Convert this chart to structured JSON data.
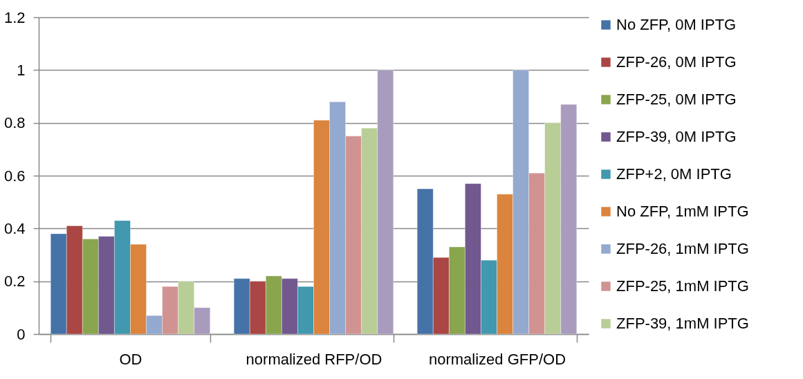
{
  "chart_data": {
    "type": "bar",
    "categories": [
      "OD",
      "normalized RFP/OD",
      "normalized GFP/OD"
    ],
    "series": [
      {
        "name": "No ZFP, 0M IPTG",
        "color": "#4572a7",
        "values": [
          0.38,
          0.21,
          0.55
        ]
      },
      {
        "name": "ZFP-26, 0M IPTG",
        "color": "#aa4643",
        "values": [
          0.41,
          0.2,
          0.29
        ]
      },
      {
        "name": "ZFP-25, 0M IPTG",
        "color": "#89a54e",
        "values": [
          0.36,
          0.22,
          0.33
        ]
      },
      {
        "name": "ZFP-39, 0M IPTG",
        "color": "#71588f",
        "values": [
          0.37,
          0.21,
          0.57
        ]
      },
      {
        "name": "ZFP+2, 0M IPTG",
        "color": "#4198af",
        "values": [
          0.43,
          0.18,
          0.28
        ]
      },
      {
        "name": "No ZFP, 1mM IPTG",
        "color": "#db843d",
        "values": [
          0.34,
          0.81,
          0.53
        ]
      },
      {
        "name": "ZFP-26, 1mM IPTG",
        "color": "#93a9cf",
        "values": [
          0.07,
          0.88,
          1.0
        ]
      },
      {
        "name": "ZFP-25, 1mM IPTG",
        "color": "#d19392",
        "values": [
          0.18,
          0.75,
          0.61
        ]
      },
      {
        "name": "ZFP-39, 1mM IPTG",
        "color": "#b9cd96",
        "values": [
          0.2,
          0.78,
          0.8
        ]
      },
      {
        "color": "#a99bbd",
        "values": [
          0.1,
          1.0,
          0.87
        ]
      }
    ],
    "ylim": [
      0,
      1.2
    ],
    "yticks": [
      0,
      0.2,
      0.4,
      0.6,
      0.8,
      1,
      1.2
    ],
    "grid": "y",
    "legend": "right"
  }
}
